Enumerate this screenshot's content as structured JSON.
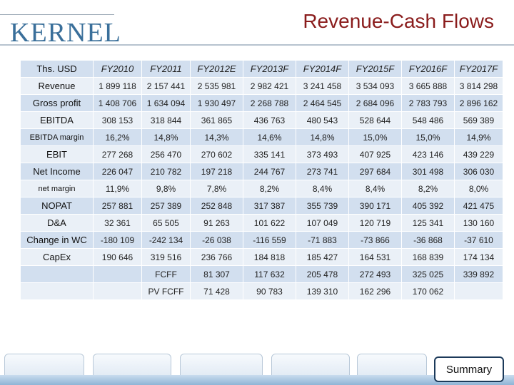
{
  "logo": "KERNEL",
  "title": "Revenue-Cash Flows",
  "table": {
    "header": [
      "Ths. USD",
      "FY2010",
      "FY2011",
      "FY2012E",
      "FY2013F",
      "FY2014F",
      "FY2015F",
      "FY2016F",
      "FY2017F"
    ],
    "rows": [
      [
        "Revenue",
        "1 899 118",
        "2 157 441",
        "2 535 981",
        "2 982 421",
        "3 241 458",
        "3 534 093",
        "3 665 888",
        "3 814 298"
      ],
      [
        "Gross profit",
        "1 408 706",
        "1 634 094",
        "1 930 497",
        "2 268 788",
        "2 464 545",
        "2 684 096",
        "2 783 793",
        "2 896 162"
      ],
      [
        "EBITDA",
        "308 153",
        "318 844",
        "361 865",
        "436 763",
        "480 543",
        "528 644",
        "548 486",
        "569 389"
      ],
      [
        "EBITDA margin",
        "16,2%",
        "14,8%",
        "14,3%",
        "14,6%",
        "14,8%",
        "15,0%",
        "15,0%",
        "14,9%"
      ],
      [
        "EBIT",
        "277 268",
        "256 470",
        "270 602",
        "335 141",
        "373 493",
        "407 925",
        "423 146",
        "439 229"
      ],
      [
        "Net Income",
        "226 047",
        "210 782",
        "197 218",
        "244 767",
        "273 741",
        "297 684",
        "301 498",
        "306 030"
      ],
      [
        "net margin",
        "11,9%",
        "9,8%",
        "7,8%",
        "8,2%",
        "8,4%",
        "8,4%",
        "8,2%",
        "8,0%"
      ],
      [
        "NOPAT",
        "257 881",
        "257 389",
        "252 848",
        "317 387",
        "355 739",
        "390 171",
        "405 392",
        "421 475"
      ],
      [
        "D&A",
        "32 361",
        "65 505",
        "91 263",
        "101 622",
        "107 049",
        "120 719",
        "125 341",
        "130 160"
      ],
      [
        "Change in WC",
        "-180 109",
        "-242 134",
        "-26 038",
        "-116 559",
        "-71 883",
        "-73 866",
        "-36 868",
        "-37 610"
      ],
      [
        "CapEx",
        "190 646",
        "319 516",
        "236 766",
        "184 818",
        "185 427",
        "164 531",
        "168 839",
        "174 134"
      ],
      [
        "",
        "",
        "FCFF",
        "81 307",
        "117 632",
        "205 478",
        "272 493",
        "325 025",
        "339 892"
      ],
      [
        "",
        "",
        "PV FCFF",
        "71 428",
        "90 783",
        "139 310",
        "162 296",
        "170 062",
        ""
      ]
    ]
  },
  "summary_button": "Summary"
}
